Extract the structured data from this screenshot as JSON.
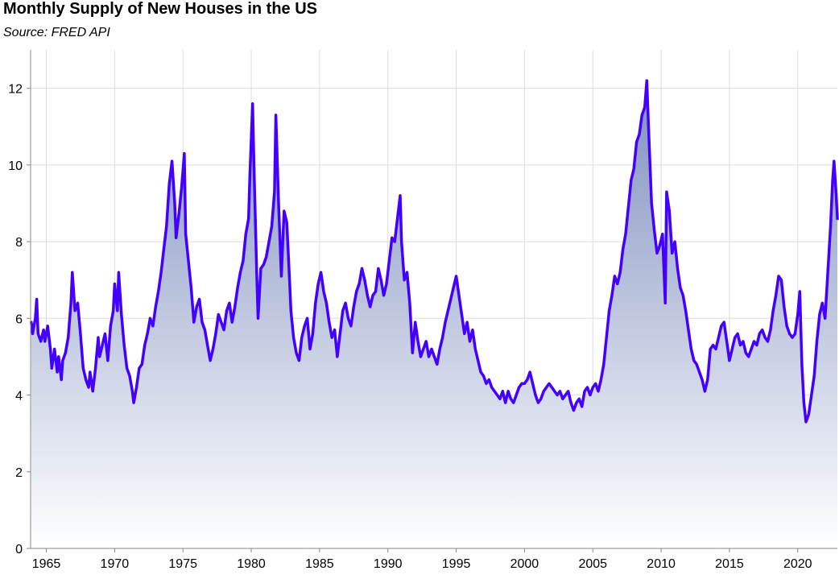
{
  "chart_data": {
    "type": "area",
    "title": "Monthly Supply of New Houses in the US",
    "subtitle": "Source: FRED API",
    "xlabel": "",
    "ylabel": "",
    "xlim": [
      1963.85,
      2022.9
    ],
    "ylim": [
      0,
      13
    ],
    "x_ticks": [
      "1965",
      "1970",
      "1975",
      "1980",
      "1985",
      "1990",
      "1995",
      "2000",
      "2005",
      "2010",
      "2015",
      "2020"
    ],
    "y_ticks": [
      "0",
      "2",
      "4",
      "6",
      "8",
      "10",
      "12"
    ],
    "grid": true,
    "colors": {
      "line": "#4400ff",
      "fill_top": "#8090bf",
      "fill_bottom": "#ffffff",
      "grid": "#dddddd"
    },
    "series": [
      {
        "points": [
          [
            1963.9,
            5.9
          ],
          [
            1964.0,
            5.6
          ],
          [
            1964.2,
            6.0
          ],
          [
            1964.3,
            6.5
          ],
          [
            1964.4,
            5.6
          ],
          [
            1964.6,
            5.4
          ],
          [
            1964.8,
            5.7
          ],
          [
            1964.9,
            5.4
          ],
          [
            1965.1,
            5.8
          ],
          [
            1965.3,
            5.2
          ],
          [
            1965.4,
            4.7
          ],
          [
            1965.6,
            5.2
          ],
          [
            1965.8,
            4.6
          ],
          [
            1965.9,
            5.0
          ],
          [
            1966.1,
            4.4
          ],
          [
            1966.2,
            4.9
          ],
          [
            1966.4,
            5.1
          ],
          [
            1966.6,
            5.5
          ],
          [
            1966.8,
            6.4
          ],
          [
            1966.9,
            7.2
          ],
          [
            1967.1,
            6.2
          ],
          [
            1967.3,
            6.4
          ],
          [
            1967.5,
            5.6
          ],
          [
            1967.7,
            4.7
          ],
          [
            1967.9,
            4.4
          ],
          [
            1968.1,
            4.2
          ],
          [
            1968.2,
            4.6
          ],
          [
            1968.4,
            4.1
          ],
          [
            1968.6,
            4.7
          ],
          [
            1968.8,
            5.5
          ],
          [
            1968.9,
            5.0
          ],
          [
            1969.1,
            5.3
          ],
          [
            1969.3,
            5.6
          ],
          [
            1969.5,
            4.9
          ],
          [
            1969.7,
            5.8
          ],
          [
            1969.9,
            6.2
          ],
          [
            1970.0,
            6.9
          ],
          [
            1970.2,
            6.2
          ],
          [
            1970.3,
            7.2
          ],
          [
            1970.5,
            6.1
          ],
          [
            1970.7,
            5.3
          ],
          [
            1970.9,
            4.7
          ],
          [
            1971.1,
            4.5
          ],
          [
            1971.3,
            4.1
          ],
          [
            1971.4,
            3.8
          ],
          [
            1971.6,
            4.2
          ],
          [
            1971.8,
            4.7
          ],
          [
            1972.0,
            4.8
          ],
          [
            1972.2,
            5.3
          ],
          [
            1972.4,
            5.6
          ],
          [
            1972.6,
            6.0
          ],
          [
            1972.8,
            5.8
          ],
          [
            1973.0,
            6.3
          ],
          [
            1973.2,
            6.7
          ],
          [
            1973.4,
            7.2
          ],
          [
            1973.6,
            7.8
          ],
          [
            1973.8,
            8.4
          ],
          [
            1974.0,
            9.5
          ],
          [
            1974.2,
            10.1
          ],
          [
            1974.4,
            9.0
          ],
          [
            1974.5,
            8.1
          ],
          [
            1974.7,
            8.7
          ],
          [
            1974.9,
            9.4
          ],
          [
            1975.1,
            10.3
          ],
          [
            1975.2,
            8.2
          ],
          [
            1975.4,
            7.5
          ],
          [
            1975.6,
            6.8
          ],
          [
            1975.8,
            5.9
          ],
          [
            1976.0,
            6.3
          ],
          [
            1976.2,
            6.5
          ],
          [
            1976.4,
            5.9
          ],
          [
            1976.6,
            5.7
          ],
          [
            1976.8,
            5.3
          ],
          [
            1977.0,
            4.9
          ],
          [
            1977.2,
            5.2
          ],
          [
            1977.4,
            5.6
          ],
          [
            1977.6,
            6.1
          ],
          [
            1977.8,
            5.9
          ],
          [
            1978.0,
            5.7
          ],
          [
            1978.2,
            6.2
          ],
          [
            1978.4,
            6.4
          ],
          [
            1978.6,
            5.9
          ],
          [
            1978.8,
            6.3
          ],
          [
            1979.0,
            6.8
          ],
          [
            1979.2,
            7.2
          ],
          [
            1979.4,
            7.5
          ],
          [
            1979.6,
            8.2
          ],
          [
            1979.8,
            8.6
          ],
          [
            1979.9,
            9.7
          ],
          [
            1980.1,
            11.6
          ],
          [
            1980.2,
            10.0
          ],
          [
            1980.4,
            7.2
          ],
          [
            1980.5,
            6.0
          ],
          [
            1980.7,
            7.3
          ],
          [
            1980.9,
            7.4
          ],
          [
            1981.1,
            7.6
          ],
          [
            1981.3,
            8.0
          ],
          [
            1981.5,
            8.4
          ],
          [
            1981.7,
            9.3
          ],
          [
            1981.8,
            11.3
          ],
          [
            1982.0,
            9.0
          ],
          [
            1982.2,
            7.1
          ],
          [
            1982.4,
            8.8
          ],
          [
            1982.6,
            8.5
          ],
          [
            1982.8,
            7.0
          ],
          [
            1982.9,
            6.2
          ],
          [
            1983.1,
            5.5
          ],
          [
            1983.3,
            5.1
          ],
          [
            1983.5,
            4.9
          ],
          [
            1983.7,
            5.5
          ],
          [
            1983.9,
            5.8
          ],
          [
            1984.1,
            6.0
          ],
          [
            1984.3,
            5.2
          ],
          [
            1984.5,
            5.6
          ],
          [
            1984.7,
            6.4
          ],
          [
            1984.9,
            6.9
          ],
          [
            1985.1,
            7.2
          ],
          [
            1985.3,
            6.7
          ],
          [
            1985.5,
            6.4
          ],
          [
            1985.7,
            5.9
          ],
          [
            1985.9,
            5.5
          ],
          [
            1986.1,
            5.7
          ],
          [
            1986.3,
            5.0
          ],
          [
            1986.5,
            5.6
          ],
          [
            1986.7,
            6.2
          ],
          [
            1986.9,
            6.4
          ],
          [
            1987.1,
            6.0
          ],
          [
            1987.3,
            5.8
          ],
          [
            1987.5,
            6.3
          ],
          [
            1987.7,
            6.7
          ],
          [
            1987.9,
            6.9
          ],
          [
            1988.1,
            7.3
          ],
          [
            1988.3,
            7.0
          ],
          [
            1988.5,
            6.6
          ],
          [
            1988.7,
            6.3
          ],
          [
            1988.9,
            6.6
          ],
          [
            1989.1,
            6.7
          ],
          [
            1989.3,
            7.3
          ],
          [
            1989.5,
            7.0
          ],
          [
            1989.7,
            6.6
          ],
          [
            1989.9,
            6.9
          ],
          [
            1990.1,
            7.5
          ],
          [
            1990.3,
            8.1
          ],
          [
            1990.5,
            8.0
          ],
          [
            1990.7,
            8.6
          ],
          [
            1990.9,
            9.2
          ],
          [
            1991.0,
            8.0
          ],
          [
            1991.2,
            7.0
          ],
          [
            1991.4,
            7.2
          ],
          [
            1991.6,
            6.4
          ],
          [
            1991.8,
            5.1
          ],
          [
            1992.0,
            5.9
          ],
          [
            1992.2,
            5.4
          ],
          [
            1992.4,
            5.0
          ],
          [
            1992.6,
            5.2
          ],
          [
            1992.8,
            5.4
          ],
          [
            1993.0,
            5.0
          ],
          [
            1993.2,
            5.2
          ],
          [
            1993.4,
            5.0
          ],
          [
            1993.6,
            4.8
          ],
          [
            1993.8,
            5.2
          ],
          [
            1994.0,
            5.5
          ],
          [
            1994.2,
            5.9
          ],
          [
            1994.4,
            6.2
          ],
          [
            1994.6,
            6.5
          ],
          [
            1994.8,
            6.8
          ],
          [
            1995.0,
            7.1
          ],
          [
            1995.2,
            6.6
          ],
          [
            1995.4,
            6.1
          ],
          [
            1995.6,
            5.6
          ],
          [
            1995.8,
            5.9
          ],
          [
            1996.0,
            5.4
          ],
          [
            1996.2,
            5.7
          ],
          [
            1996.4,
            5.2
          ],
          [
            1996.6,
            4.9
          ],
          [
            1996.8,
            4.6
          ],
          [
            1997.0,
            4.5
          ],
          [
            1997.2,
            4.3
          ],
          [
            1997.4,
            4.4
          ],
          [
            1997.6,
            4.2
          ],
          [
            1997.8,
            4.1
          ],
          [
            1998.0,
            4.0
          ],
          [
            1998.2,
            3.9
          ],
          [
            1998.4,
            4.1
          ],
          [
            1998.6,
            3.8
          ],
          [
            1998.8,
            4.1
          ],
          [
            1999.0,
            3.9
          ],
          [
            1999.2,
            3.8
          ],
          [
            1999.4,
            4.0
          ],
          [
            1999.6,
            4.2
          ],
          [
            1999.8,
            4.3
          ],
          [
            2000.0,
            4.3
          ],
          [
            2000.2,
            4.4
          ],
          [
            2000.4,
            4.6
          ],
          [
            2000.6,
            4.3
          ],
          [
            2000.8,
            4.0
          ],
          [
            2001.0,
            3.8
          ],
          [
            2001.2,
            3.9
          ],
          [
            2001.4,
            4.1
          ],
          [
            2001.6,
            4.2
          ],
          [
            2001.8,
            4.3
          ],
          [
            2002.0,
            4.2
          ],
          [
            2002.2,
            4.1
          ],
          [
            2002.4,
            4.0
          ],
          [
            2002.6,
            4.1
          ],
          [
            2002.8,
            3.9
          ],
          [
            2003.0,
            4.0
          ],
          [
            2003.2,
            4.1
          ],
          [
            2003.4,
            3.8
          ],
          [
            2003.6,
            3.6
          ],
          [
            2003.8,
            3.8
          ],
          [
            2004.0,
            3.9
          ],
          [
            2004.2,
            3.7
          ],
          [
            2004.4,
            4.1
          ],
          [
            2004.6,
            4.2
          ],
          [
            2004.8,
            4.0
          ],
          [
            2005.0,
            4.2
          ],
          [
            2005.2,
            4.3
          ],
          [
            2005.4,
            4.1
          ],
          [
            2005.6,
            4.4
          ],
          [
            2005.8,
            4.8
          ],
          [
            2006.0,
            5.5
          ],
          [
            2006.2,
            6.2
          ],
          [
            2006.4,
            6.6
          ],
          [
            2006.6,
            7.1
          ],
          [
            2006.8,
            6.9
          ],
          [
            2007.0,
            7.2
          ],
          [
            2007.2,
            7.8
          ],
          [
            2007.4,
            8.2
          ],
          [
            2007.6,
            8.9
          ],
          [
            2007.8,
            9.6
          ],
          [
            2008.0,
            9.9
          ],
          [
            2008.2,
            10.6
          ],
          [
            2008.4,
            10.8
          ],
          [
            2008.6,
            11.3
          ],
          [
            2008.8,
            11.5
          ],
          [
            2008.95,
            12.2
          ],
          [
            2009.1,
            10.8
          ],
          [
            2009.3,
            9.0
          ],
          [
            2009.5,
            8.3
          ],
          [
            2009.7,
            7.7
          ],
          [
            2009.9,
            7.9
          ],
          [
            2010.1,
            8.2
          ],
          [
            2010.3,
            6.4
          ],
          [
            2010.4,
            9.3
          ],
          [
            2010.6,
            8.8
          ],
          [
            2010.8,
            7.7
          ],
          [
            2011.0,
            8.0
          ],
          [
            2011.2,
            7.3
          ],
          [
            2011.4,
            6.8
          ],
          [
            2011.6,
            6.6
          ],
          [
            2011.8,
            6.2
          ],
          [
            2012.0,
            5.7
          ],
          [
            2012.2,
            5.2
          ],
          [
            2012.4,
            4.9
          ],
          [
            2012.6,
            4.8
          ],
          [
            2012.8,
            4.6
          ],
          [
            2013.0,
            4.4
          ],
          [
            2013.2,
            4.1
          ],
          [
            2013.4,
            4.4
          ],
          [
            2013.6,
            5.2
          ],
          [
            2013.8,
            5.3
          ],
          [
            2014.0,
            5.2
          ],
          [
            2014.2,
            5.5
          ],
          [
            2014.4,
            5.8
          ],
          [
            2014.6,
            5.9
          ],
          [
            2014.8,
            5.4
          ],
          [
            2015.0,
            4.9
          ],
          [
            2015.2,
            5.2
          ],
          [
            2015.4,
            5.5
          ],
          [
            2015.6,
            5.6
          ],
          [
            2015.8,
            5.3
          ],
          [
            2016.0,
            5.4
          ],
          [
            2016.2,
            5.1
          ],
          [
            2016.4,
            5.0
          ],
          [
            2016.6,
            5.2
          ],
          [
            2016.8,
            5.4
          ],
          [
            2017.0,
            5.3
          ],
          [
            2017.2,
            5.6
          ],
          [
            2017.4,
            5.7
          ],
          [
            2017.6,
            5.5
          ],
          [
            2017.8,
            5.4
          ],
          [
            2018.0,
            5.7
          ],
          [
            2018.2,
            6.2
          ],
          [
            2018.4,
            6.6
          ],
          [
            2018.6,
            7.1
          ],
          [
            2018.8,
            7.0
          ],
          [
            2019.0,
            6.3
          ],
          [
            2019.2,
            5.8
          ],
          [
            2019.4,
            5.6
          ],
          [
            2019.6,
            5.5
          ],
          [
            2019.8,
            5.6
          ],
          [
            2020.0,
            6.1
          ],
          [
            2020.15,
            6.7
          ],
          [
            2020.3,
            4.8
          ],
          [
            2020.45,
            3.8
          ],
          [
            2020.6,
            3.3
          ],
          [
            2020.8,
            3.5
          ],
          [
            2021.0,
            4.0
          ],
          [
            2021.2,
            4.5
          ],
          [
            2021.4,
            5.4
          ],
          [
            2021.6,
            6.1
          ],
          [
            2021.8,
            6.4
          ],
          [
            2022.0,
            6.0
          ],
          [
            2022.2,
            7.2
          ],
          [
            2022.4,
            8.4
          ],
          [
            2022.55,
            9.6
          ],
          [
            2022.65,
            10.1
          ],
          [
            2022.8,
            9.3
          ],
          [
            2022.9,
            8.6
          ]
        ]
      }
    ]
  }
}
